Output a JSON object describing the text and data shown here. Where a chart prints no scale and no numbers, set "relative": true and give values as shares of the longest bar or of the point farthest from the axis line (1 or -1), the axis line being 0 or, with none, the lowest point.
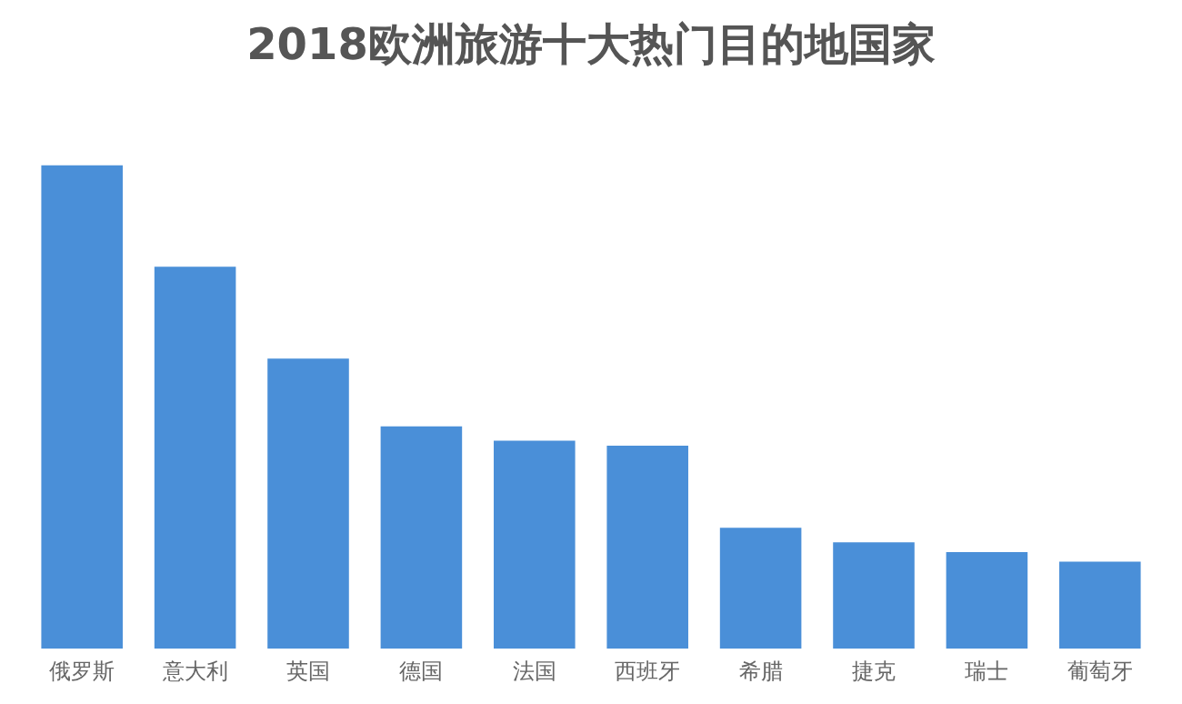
{
  "chart_data": {
    "type": "bar",
    "title": "2018欧洲旅游十大热门目的地国家",
    "categories": [
      "俄罗斯",
      "意大利",
      "英国",
      "德国",
      "法国",
      "西班牙",
      "希腊",
      "捷克",
      "瑞士",
      "葡萄牙"
    ],
    "values": [
      1,
      0.79,
      0.6,
      0.46,
      0.43,
      0.42,
      0.25,
      0.22,
      0.2,
      0.18
    ],
    "color": "#4a8fd8",
    "relative": true,
    "grid": false,
    "legend": false
  }
}
